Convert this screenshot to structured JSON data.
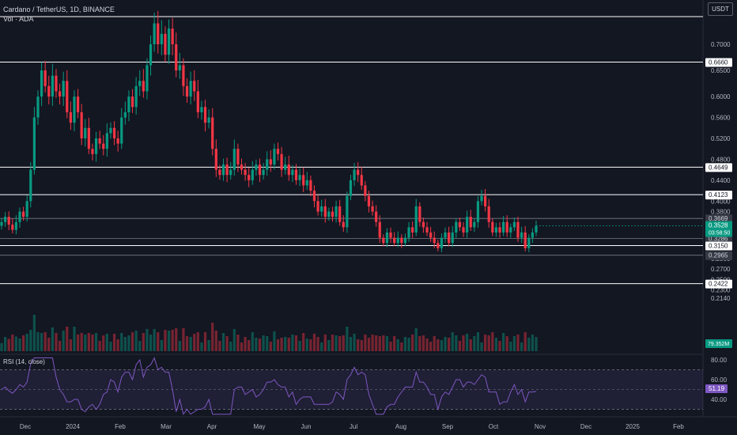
{
  "header": {
    "symbol_title": "Cardano / TetherUS, 1D, BINANCE",
    "volume_label": "Vol · ADA",
    "currency_button": "USDT"
  },
  "rsi": {
    "label": "RSI (14, close)",
    "current_value": "51.19",
    "upper_band": 70,
    "lower_band": 30,
    "ticks": [
      "80.00",
      "60.00",
      "40.00"
    ]
  },
  "chart_data": {
    "type": "candlestick",
    "title": "Cardano / TetherUS, 1D, BINANCE",
    "x_ticks": [
      "Dec",
      "2024",
      "Feb",
      "Mar",
      "Apr",
      "May",
      "Jun",
      "Jul",
      "Aug",
      "Sep",
      "Oct",
      "Nov",
      "Dec",
      "2025",
      "Feb"
    ],
    "y_ticks": [
      "0.7000",
      "0.6500",
      "0.6000",
      "0.5600",
      "0.5200",
      "0.4800",
      "0.4400",
      "0.4000",
      "0.3800",
      "0.3400",
      "0.2900",
      "0.2700",
      "0.2500",
      "0.2300",
      "0.2140"
    ],
    "horizontal_levels": [
      "0.6660",
      "0.4649",
      "0.4123",
      "0.3669",
      "0.3286",
      "0.3150",
      "0.2965",
      "0.2422"
    ],
    "last_price": "0.3528",
    "countdown": "03:58:50",
    "volume_last": "79.352M",
    "close_path": [
      0.36,
      0.37,
      0.355,
      0.345,
      0.36,
      0.38,
      0.37,
      0.4,
      0.46,
      0.56,
      0.6,
      0.65,
      0.62,
      0.6,
      0.64,
      0.61,
      0.6,
      0.63,
      0.57,
      0.55,
      0.6,
      0.57,
      0.52,
      0.54,
      0.5,
      0.49,
      0.52,
      0.51,
      0.5,
      0.53,
      0.54,
      0.52,
      0.51,
      0.56,
      0.57,
      0.6,
      0.58,
      0.62,
      0.63,
      0.61,
      0.66,
      0.7,
      0.74,
      0.7,
      0.72,
      0.68,
      0.73,
      0.7,
      0.65,
      0.66,
      0.62,
      0.6,
      0.63,
      0.61,
      0.57,
      0.58,
      0.55,
      0.56,
      0.5,
      0.46,
      0.45,
      0.47,
      0.45,
      0.46,
      0.5,
      0.47,
      0.46,
      0.45,
      0.44,
      0.46,
      0.47,
      0.45,
      0.46,
      0.48,
      0.47,
      0.5,
      0.49,
      0.46,
      0.47,
      0.45,
      0.46,
      0.44,
      0.45,
      0.43,
      0.44,
      0.42,
      0.4,
      0.38,
      0.39,
      0.37,
      0.38,
      0.37,
      0.39,
      0.36,
      0.35,
      0.41,
      0.44,
      0.46,
      0.45,
      0.43,
      0.41,
      0.39,
      0.38,
      0.36,
      0.33,
      0.32,
      0.34,
      0.33,
      0.32,
      0.33,
      0.32,
      0.33,
      0.35,
      0.34,
      0.39,
      0.36,
      0.35,
      0.34,
      0.33,
      0.32,
      0.31,
      0.33,
      0.34,
      0.32,
      0.34,
      0.36,
      0.35,
      0.34,
      0.37,
      0.35,
      0.36,
      0.4,
      0.41,
      0.39,
      0.36,
      0.34,
      0.35,
      0.34,
      0.36,
      0.34,
      0.35,
      0.36,
      0.33,
      0.34,
      0.31,
      0.33,
      0.34,
      0.3528
    ]
  },
  "colors": {
    "background": "#131722",
    "up": "#089981",
    "down": "#f23645",
    "rsi_line": "#7e57c2",
    "grid": "#2a2e39",
    "level_line": "#ffffff"
  }
}
